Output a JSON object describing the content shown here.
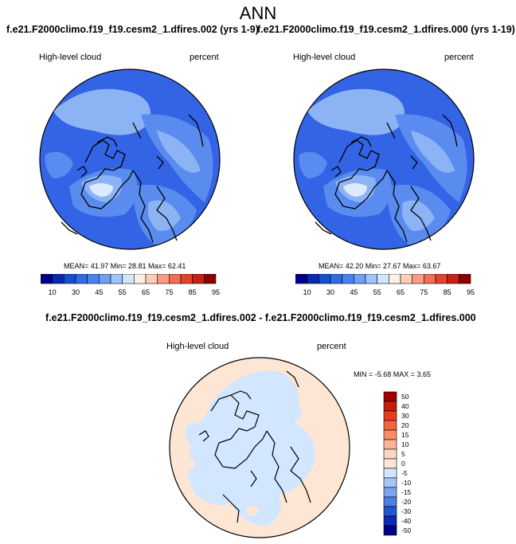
{
  "title": "ANN",
  "headers": {
    "left": "f.e21.F2000climo.f19_f19.cesm2_1.dfires.002 (yrs 1-9)",
    "right": "f.e21.F2000climo.f19_f19.cesm2_1.dfires.000 (yrs 1-19)",
    "diff": "f.e21.F2000climo.f19_f19.cesm2_1.dfires.002 - f.e21.F2000climo.f19_f19.cesm2_1.dfires.000"
  },
  "panels": [
    {
      "variable": "High-level cloud",
      "units": "percent",
      "stats": "MEAN=  41.97  Min=  28.81  Max=  62.41"
    },
    {
      "variable": "High-level cloud",
      "units": "percent",
      "stats": "MEAN=  42.20  Min=  27.67  Max=  63.67"
    },
    {
      "variable": "High-level cloud",
      "units": "percent",
      "stats": "MIN =  -5.68 MAX =   3.65"
    }
  ],
  "colorbar_h": {
    "ticks": [
      "10",
      "30",
      "45",
      "55",
      "65",
      "75",
      "85",
      "95"
    ],
    "colors": [
      "#00008c",
      "#0a28b4",
      "#1450d2",
      "#2d6ee6",
      "#4682f0",
      "#6ea0f5",
      "#a0c3fa",
      "#d2e6ff",
      "#fff0e6",
      "#ffcdb4",
      "#fa9b82",
      "#f06e55",
      "#e6412d",
      "#c81e14",
      "#8c0000"
    ]
  },
  "colorbar_v": {
    "labels": [
      "50",
      "40",
      "30",
      "20",
      "15",
      "10",
      "5",
      "0",
      "-5",
      "-10",
      "-15",
      "-20",
      "-30",
      "-40",
      "-50"
    ],
    "colors": [
      "#a00000",
      "#c41e0a",
      "#e63c1e",
      "#f5643c",
      "#fa8c64",
      "#fcb496",
      "#fcd7c3",
      "#fde7d4",
      "#d2e6ff",
      "#a5c8f7",
      "#7aa5f0",
      "#4b7fe6",
      "#2355d2",
      "#0a2ab4",
      "#000087"
    ]
  },
  "colors": {
    "ocean_base": "#3464e6",
    "cloud_light": "#8cb4f5",
    "cloud_mid": "#5a8cf0",
    "cloud_max": "#dcebff",
    "diff_base": "#fde7d4",
    "diff_neg": "#d2e6ff"
  }
}
